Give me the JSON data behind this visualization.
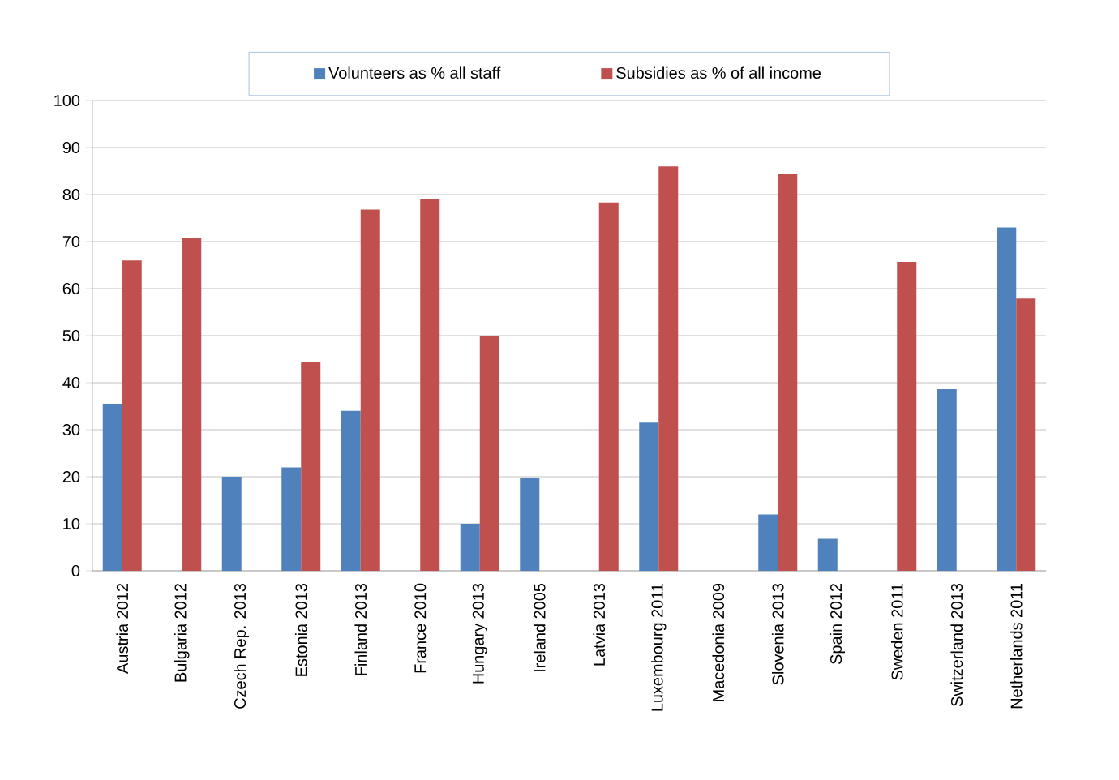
{
  "chart_data": {
    "type": "bar",
    "categories": [
      "Austria 2012",
      "Bulgaria 2012",
      "Czech Rep. 2013",
      "Estonia 2013",
      "Finland 2013",
      "France 2010",
      "Hungary 2013",
      "Ireland 2005",
      "Latvia 2013",
      "Luxembourg 2011",
      "Macedonia 2009",
      "Slovenia 2013",
      "Spain 2012",
      "Sweden 2011",
      "Switzerland 2013",
      "Netherlands 2011"
    ],
    "series": [
      {
        "name": "Volunteers as % all staff",
        "color": "#4f81bd",
        "values": [
          35.5,
          null,
          20,
          22,
          34,
          null,
          10,
          19.7,
          null,
          31.5,
          null,
          12,
          6.8,
          null,
          38.6,
          73
        ]
      },
      {
        "name": "Subsidies as % of all income",
        "color": "#c0504d",
        "values": [
          66,
          70.7,
          null,
          44.5,
          76.8,
          79,
          50,
          null,
          78.3,
          86,
          null,
          84.3,
          null,
          65.7,
          null,
          57.9
        ]
      }
    ],
    "ylim": [
      0,
      100
    ],
    "yticks": [
      0,
      10,
      20,
      30,
      40,
      50,
      60,
      70,
      80,
      90,
      100
    ],
    "grid": "y",
    "legend": "top"
  }
}
